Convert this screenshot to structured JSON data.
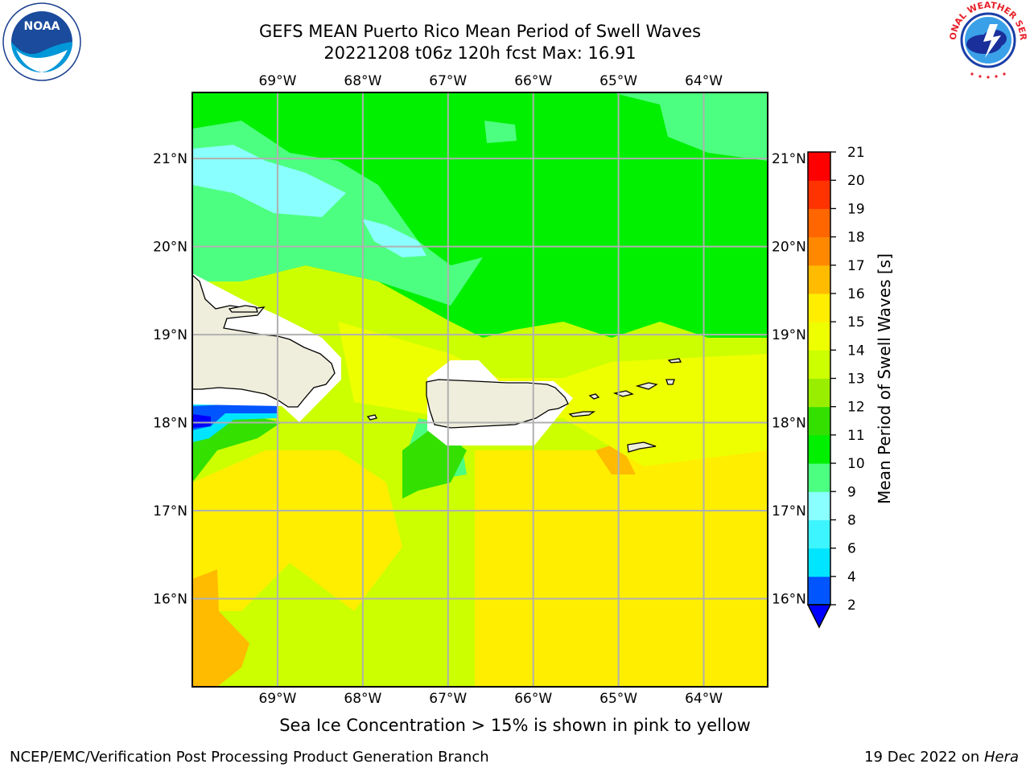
{
  "title": {
    "line1": "GEFS MEAN Puerto Rico Mean Period of Swell Waves",
    "line2": "20221208 t06z 120h fcst   Max: 16.91"
  },
  "map": {
    "lon_labels": [
      "69°W",
      "68°W",
      "67°W",
      "66°W",
      "65°W",
      "64°W"
    ],
    "lat_labels": [
      "21°N",
      "20°N",
      "19°N",
      "18°N",
      "17°N",
      "16°N"
    ],
    "lon_values": [
      -69,
      -68,
      -67,
      -66,
      -65,
      -64
    ],
    "lat_values": [
      21,
      20,
      19,
      18,
      17,
      16
    ],
    "lon_range": [
      -70,
      -63.25
    ],
    "lat_range": [
      15,
      21.75
    ]
  },
  "colorbar": {
    "label": "Mean Period of Swell Waves [s]",
    "ticks": [
      "2",
      "4",
      "6",
      "8",
      "9",
      "10",
      "11",
      "12",
      "13",
      "14",
      "15",
      "16",
      "17",
      "18",
      "19",
      "20",
      "21"
    ],
    "colors": [
      "#0055ff",
      "#00e5ff",
      "#3df5ff",
      "#8affff",
      "#4dff80",
      "#00f000",
      "#33e000",
      "#99ee00",
      "#ccff00",
      "#eeff00",
      "#ffee00",
      "#ffbb00",
      "#ff8800",
      "#ff6600",
      "#ff3300",
      "#ff0000"
    ],
    "under_color": "#0000ff"
  },
  "footer": {
    "note": "Sea Ice Concentration > 15% is shown in pink to yellow",
    "left": "NCEP/EMC/Verification Post Processing Product Generation Branch",
    "right_prefix": "19 Dec 2022 on ",
    "right_host": "Hera"
  },
  "logos": {
    "noaa_text": "NOAA",
    "nws_text": "NATIONAL WEATHER SERVICE"
  },
  "colors": {
    "land": "#efeedc",
    "mask": "#ffffff",
    "grid": "#b0b0b0"
  }
}
